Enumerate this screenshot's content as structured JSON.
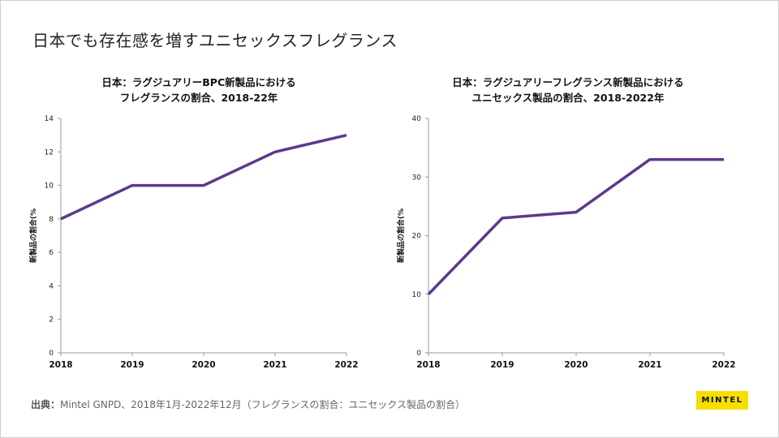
{
  "slide": {
    "title": "日本でも存在感を増すユニセックスフレグランス"
  },
  "source": {
    "label": "出典：",
    "text": "Mintel GNPD、2018年1月-2022年12月（フレグランスの割合：ユニセックス製品の割合）"
  },
  "logo": {
    "text": "MINTEL"
  },
  "colors": {
    "line": "#5b3a8c",
    "axis": "#999999",
    "logo_bg": "#f5df00"
  },
  "chart_data": [
    {
      "type": "line",
      "title_line1": "日本：ラグジュアリーBPC新製品における",
      "title_line2": "フレグランスの割合、2018-22年",
      "ylabel": "新製品の割合(%",
      "categories": [
        "2018",
        "2019",
        "2020",
        "2021",
        "2022"
      ],
      "values": [
        8,
        10,
        10,
        12,
        13
      ],
      "ylim": [
        0,
        14
      ],
      "yticks": [
        0,
        2,
        4,
        6,
        8,
        10,
        12,
        14
      ]
    },
    {
      "type": "line",
      "title_line1": "日本：ラグジュアリーフレグランス新製品における",
      "title_line2": "ユニセックス製品の割合、2018-2022年",
      "ylabel": "新製品の割合(%",
      "categories": [
        "2018",
        "2019",
        "2020",
        "2021",
        "2022"
      ],
      "values": [
        10,
        23,
        24,
        33,
        33
      ],
      "ylim": [
        0,
        40
      ],
      "yticks": [
        0,
        10,
        20,
        30,
        40
      ]
    }
  ]
}
